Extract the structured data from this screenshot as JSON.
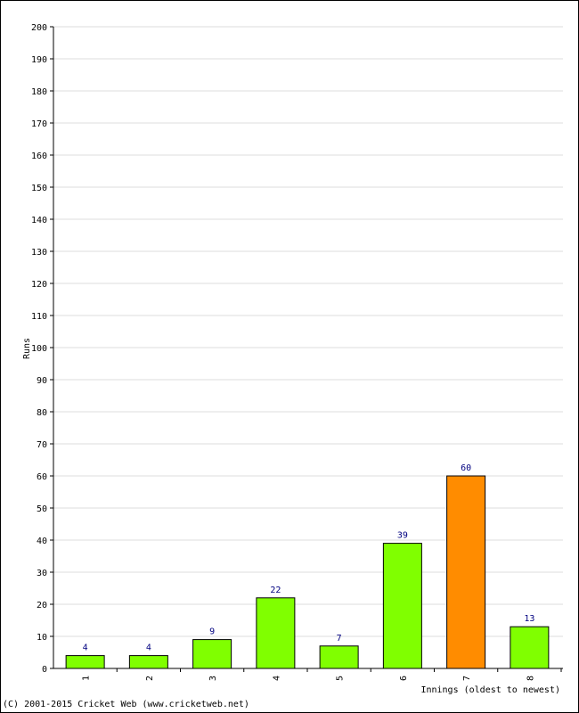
{
  "chart_data": {
    "type": "bar",
    "categories": [
      "1",
      "2",
      "3",
      "4",
      "5",
      "6",
      "7",
      "8"
    ],
    "values": [
      4,
      4,
      9,
      22,
      7,
      39,
      60,
      13
    ],
    "data_labels": [
      "4",
      "4",
      "9",
      "22",
      "7",
      "39",
      "60",
      "13"
    ],
    "highlight_index": 6,
    "colors": {
      "bar": "#80ff00",
      "highlight": "#ff8c00",
      "grid": "#dddddd",
      "label": "#000080",
      "axis": "#000000"
    },
    "title": "",
    "xlabel": "Innings (oldest to newest)",
    "ylabel": "Runs",
    "ylim": [
      0,
      200
    ],
    "ytick_step": 10,
    "grid": true
  },
  "footer": {
    "copyright": "(C) 2001-2015 Cricket Web (www.cricketweb.net)"
  }
}
